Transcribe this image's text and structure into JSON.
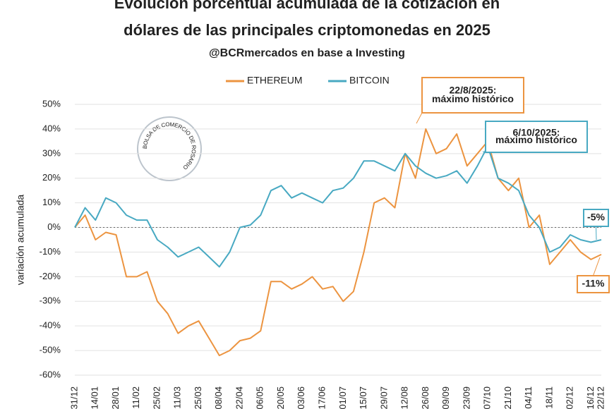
{
  "chart_data": {
    "type": "line",
    "title": [
      "Evolución porcentual acumulada de la cotización en",
      "dólares de las principales criptomonedas en 2025"
    ],
    "subtitle": "@BCRmercados en base a Investing",
    "y_label": "variación acumulada",
    "watermark": "BOLSA DE COMERCIO DE ROSARIO",
    "categories": [
      "31/12",
      null,
      "14/01",
      null,
      "28/01",
      null,
      "11/02",
      null,
      "25/02",
      null,
      "11/03",
      null,
      "25/03",
      null,
      "08/04",
      null,
      "22/04",
      null,
      "06/05",
      null,
      "20/05",
      null,
      "03/06",
      null,
      "17/06",
      null,
      "01/07",
      null,
      "15/07",
      null,
      "29/07",
      null,
      "12/08",
      null,
      "26/08",
      null,
      "09/09",
      null,
      "23/09",
      null,
      "07/10",
      null,
      "21/10",
      null,
      "04/11",
      null,
      "18/11",
      null,
      "02/12",
      null,
      "16/12",
      "22/12"
    ],
    "series": [
      {
        "name": "ETHEREUM",
        "color": "#ec9440",
        "values": [
          0,
          5,
          -5,
          -2,
          -3,
          -20,
          -20,
          -18,
          -30,
          -35,
          -43,
          -40,
          -38,
          -45,
          -52,
          -50,
          -46,
          -45,
          -42,
          -22,
          -22,
          -25,
          -23,
          -20,
          -25,
          -24,
          -30,
          -26,
          -10,
          10,
          12,
          8,
          30,
          20,
          40,
          30,
          32,
          38,
          25,
          30,
          35,
          20,
          15,
          20,
          0,
          5,
          -15,
          -10,
          -5,
          -10,
          -13,
          -11
        ]
      },
      {
        "name": "BITCOIN",
        "color": "#48a9c2",
        "values": [
          0,
          8,
          3,
          12,
          10,
          5,
          3,
          3,
          -5,
          -8,
          -12,
          -10,
          -8,
          -12,
          -16,
          -10,
          0,
          1,
          5,
          15,
          17,
          12,
          14,
          12,
          10,
          15,
          16,
          20,
          27,
          27,
          25,
          23,
          30,
          25,
          22,
          20,
          21,
          23,
          18,
          25,
          33,
          20,
          18,
          15,
          5,
          0,
          -10,
          -8,
          -3,
          -5,
          -6,
          -5
        ]
      }
    ],
    "ylim": [
      -60,
      50
    ],
    "yticks": [
      {
        "value": -60,
        "label": "-60%"
      },
      {
        "value": -50,
        "label": "-50%"
      },
      {
        "value": -40,
        "label": "-40%"
      },
      {
        "value": -30,
        "label": "-30%"
      },
      {
        "value": -20,
        "label": "-20%"
      },
      {
        "value": -10,
        "label": "-10%"
      },
      {
        "value": 0,
        "label": "0%"
      },
      {
        "value": 10,
        "label": "10%"
      },
      {
        "value": 20,
        "label": "20%"
      },
      {
        "value": 30,
        "label": "30%"
      },
      {
        "value": 40,
        "label": "40%"
      },
      {
        "value": 50,
        "label": "50%"
      }
    ],
    "grid": true,
    "annotations": [
      {
        "lines": [
          "22/8/2025:",
          "máximo histórico"
        ],
        "color": "#ec9440"
      },
      {
        "lines": [
          "6/10/2025:",
          "máximo histórico"
        ],
        "color": "#48a9c2"
      },
      {
        "lines": [
          "-5%"
        ],
        "color": "#48a9c2"
      },
      {
        "lines": [
          "-11%"
        ],
        "color": "#ec9440"
      }
    ]
  }
}
